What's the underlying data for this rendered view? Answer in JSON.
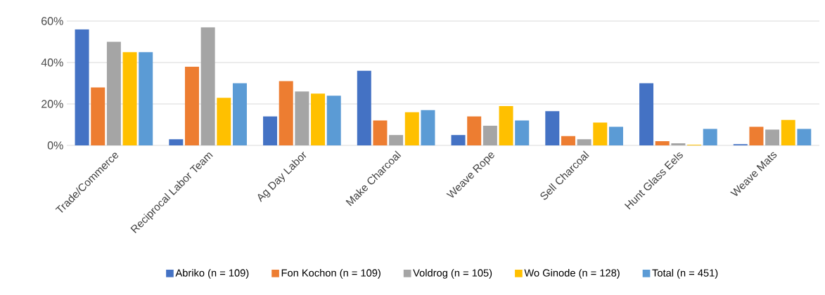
{
  "chart_data": {
    "type": "bar",
    "categories": [
      "Trade/Commerce",
      "Reciprocal Labor Team",
      "Ag Day Labor",
      "Make Charcoal",
      "Weave Rope",
      "Sell Charcoal",
      "Hunt Glass Eels",
      "Weave Mats"
    ],
    "series": [
      {
        "name": "Abriko (n = 109)",
        "color": "#4472c4",
        "values": [
          56,
          3,
          14,
          36,
          5,
          16.5,
          30,
          0.6
        ]
      },
      {
        "name": "Fon Kochon (n = 109)",
        "color": "#ed7d31",
        "values": [
          28,
          38,
          31,
          12,
          14,
          4.5,
          2,
          9
        ]
      },
      {
        "name": "Voldrog (n = 105)",
        "color": "#a5a5a5",
        "values": [
          50,
          57,
          26,
          5,
          9.5,
          3,
          1,
          7.6
        ]
      },
      {
        "name": "Wo Ginode (n = 128)",
        "color": "#ffc000",
        "values": [
          45,
          23,
          25,
          16,
          19,
          11,
          0.3,
          12.3
        ]
      },
      {
        "name": "Total (n = 451)",
        "color": "#5b9bd5",
        "values": [
          45,
          30,
          24,
          17,
          12,
          9,
          8,
          8
        ]
      }
    ],
    "ylim": [
      0,
      60
    ],
    "yticks": [
      {
        "value": 0,
        "label": "0%"
      },
      {
        "value": 20,
        "label": "20%"
      },
      {
        "value": 40,
        "label": "40%"
      },
      {
        "value": 60,
        "label": "60%"
      }
    ],
    "grid": "y",
    "legend": "bottom"
  }
}
